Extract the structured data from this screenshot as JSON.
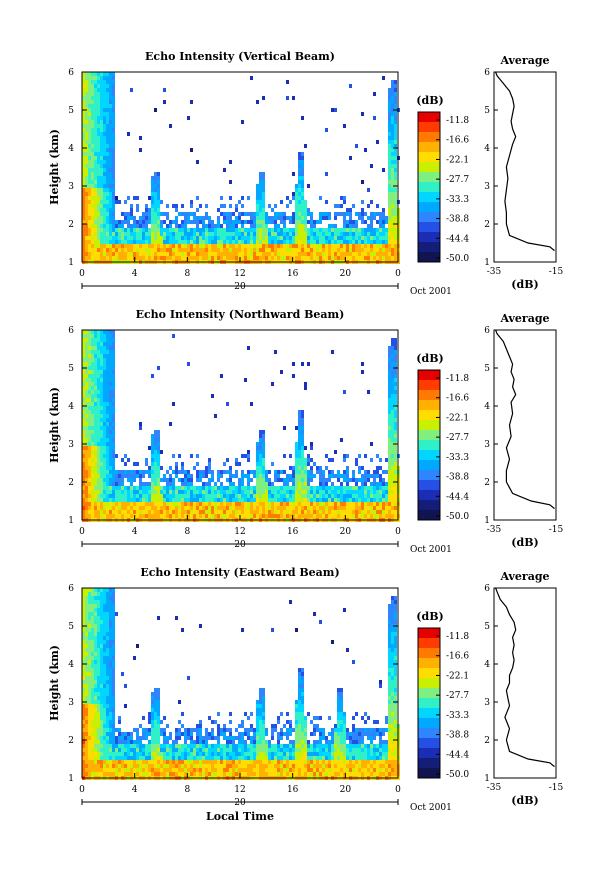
{
  "chart_data": [
    {
      "type": "heatmap",
      "title": "Echo Intensity (Vertical Beam)",
      "ylabel": "Height (km)",
      "xticks": [
        "0",
        "4",
        "8",
        "12",
        "16",
        "20",
        "0"
      ],
      "yticks": [
        "1",
        "2",
        "3",
        "4",
        "5",
        "6"
      ],
      "xlim": [
        0,
        24
      ],
      "ylim": [
        1,
        6
      ],
      "date_marker": "20",
      "date_label": "Oct 2001",
      "echo_events_hours": [
        1.5,
        5.5,
        13.5,
        16.5,
        23.5
      ],
      "profile": {
        "title": "Average",
        "xlabel": "(dB)",
        "xticks": [
          "-35",
          "-15"
        ],
        "xlim": [
          -35,
          -15
        ],
        "ylim": [
          1,
          6
        ],
        "yticks": [
          "1",
          "2",
          "3",
          "4",
          "5",
          "6"
        ],
        "x": [
          -15.5,
          -17,
          -24,
          -30,
          -31,
          -31,
          -31.5,
          -31,
          -30.5,
          -31,
          -30,
          -29,
          -28,
          -29,
          -29.5,
          -29,
          -28.5,
          -29,
          -30,
          -31,
          -32,
          -33,
          -34,
          -34.5
        ],
        "y": [
          1.3,
          1.4,
          1.5,
          1.7,
          2.0,
          2.3,
          2.6,
          2.9,
          3.2,
          3.5,
          3.8,
          4.1,
          4.3,
          4.5,
          4.7,
          4.9,
          5.1,
          5.3,
          5.5,
          5.6,
          5.7,
          5.8,
          5.9,
          6.0
        ]
      }
    },
    {
      "type": "heatmap",
      "title": "Echo Intensity (Northward Beam)",
      "ylabel": "Height (km)",
      "xticks": [
        "0",
        "4",
        "8",
        "12",
        "16",
        "20",
        "0"
      ],
      "yticks": [
        "1",
        "2",
        "3",
        "4",
        "5",
        "6"
      ],
      "xlim": [
        0,
        24
      ],
      "ylim": [
        1,
        6
      ],
      "date_marker": "20",
      "date_label": "Oct 2001",
      "echo_events_hours": [
        1.5,
        5.5,
        13.5,
        16.5,
        23.5
      ],
      "profile": {
        "title": "Average",
        "xlabel": "(dB)",
        "xticks": [
          "-35",
          "-15"
        ],
        "xlim": [
          -35,
          -15
        ],
        "ylim": [
          1,
          6
        ],
        "yticks": [
          "1",
          "2",
          "3",
          "4",
          "5",
          "6"
        ],
        "x": [
          -15.5,
          -17,
          -23,
          -29,
          -31,
          -31,
          -30,
          -31,
          -29.5,
          -30,
          -29,
          -29.5,
          -28,
          -29,
          -28.5,
          -29.5,
          -29,
          -30,
          -31,
          -32,
          -33,
          -34,
          -34.5
        ],
        "y": [
          1.3,
          1.4,
          1.5,
          1.7,
          2.0,
          2.3,
          2.6,
          2.9,
          3.2,
          3.5,
          3.8,
          4.1,
          4.3,
          4.5,
          4.7,
          4.9,
          5.1,
          5.3,
          5.5,
          5.7,
          5.8,
          5.9,
          6.0
        ]
      }
    },
    {
      "type": "heatmap",
      "title": "Echo Intensity (Eastward Beam)",
      "ylabel": "Height (km)",
      "xlabel": "Local Time",
      "xticks": [
        "0",
        "4",
        "8",
        "12",
        "16",
        "20",
        "0"
      ],
      "yticks": [
        "1",
        "2",
        "3",
        "4",
        "5",
        "6"
      ],
      "xlim": [
        0,
        24
      ],
      "ylim": [
        1,
        6
      ],
      "date_marker": "20",
      "date_label": "Oct 2001",
      "echo_events_hours": [
        1.5,
        5.5,
        13.5,
        16.5,
        19.5,
        23.5
      ],
      "profile": {
        "title": "Average",
        "xlabel": "(dB)",
        "xticks": [
          "-35",
          "-15"
        ],
        "xlim": [
          -35,
          -15
        ],
        "ylim": [
          1,
          6
        ],
        "yticks": [
          "1",
          "2",
          "3",
          "4",
          "5",
          "6"
        ],
        "x": [
          -15.5,
          -17,
          -24,
          -30,
          -31,
          -30,
          -31.5,
          -30,
          -30.5,
          -31,
          -30,
          -30,
          -29,
          -28.5,
          -29,
          -28.5,
          -29,
          -28,
          -28.5,
          -30,
          -31,
          -32,
          -33,
          -34,
          -34.5
        ],
        "y": [
          1.3,
          1.4,
          1.5,
          1.7,
          2.0,
          2.3,
          2.6,
          2.9,
          3.1,
          3.3,
          3.5,
          3.7,
          3.9,
          4.1,
          4.3,
          4.5,
          4.7,
          4.9,
          5.1,
          5.3,
          5.5,
          5.6,
          5.7,
          5.9,
          6.0
        ]
      }
    }
  ],
  "colorbar": {
    "label": "(dB)",
    "ticks": [
      "-11.8",
      "-16.6",
      "-22.1",
      "-27.7",
      "-33.3",
      "-38.8",
      "-44.4",
      "-50.0"
    ],
    "colors": [
      "#e60000",
      "#ff3b00",
      "#ff7a00",
      "#ffb000",
      "#ffdd00",
      "#c8f000",
      "#7ff07f",
      "#30f0c8",
      "#00d6ff",
      "#00a8ff",
      "#2e86ff",
      "#2450e6",
      "#1a2db4",
      "#141e78",
      "#101450"
    ]
  }
}
